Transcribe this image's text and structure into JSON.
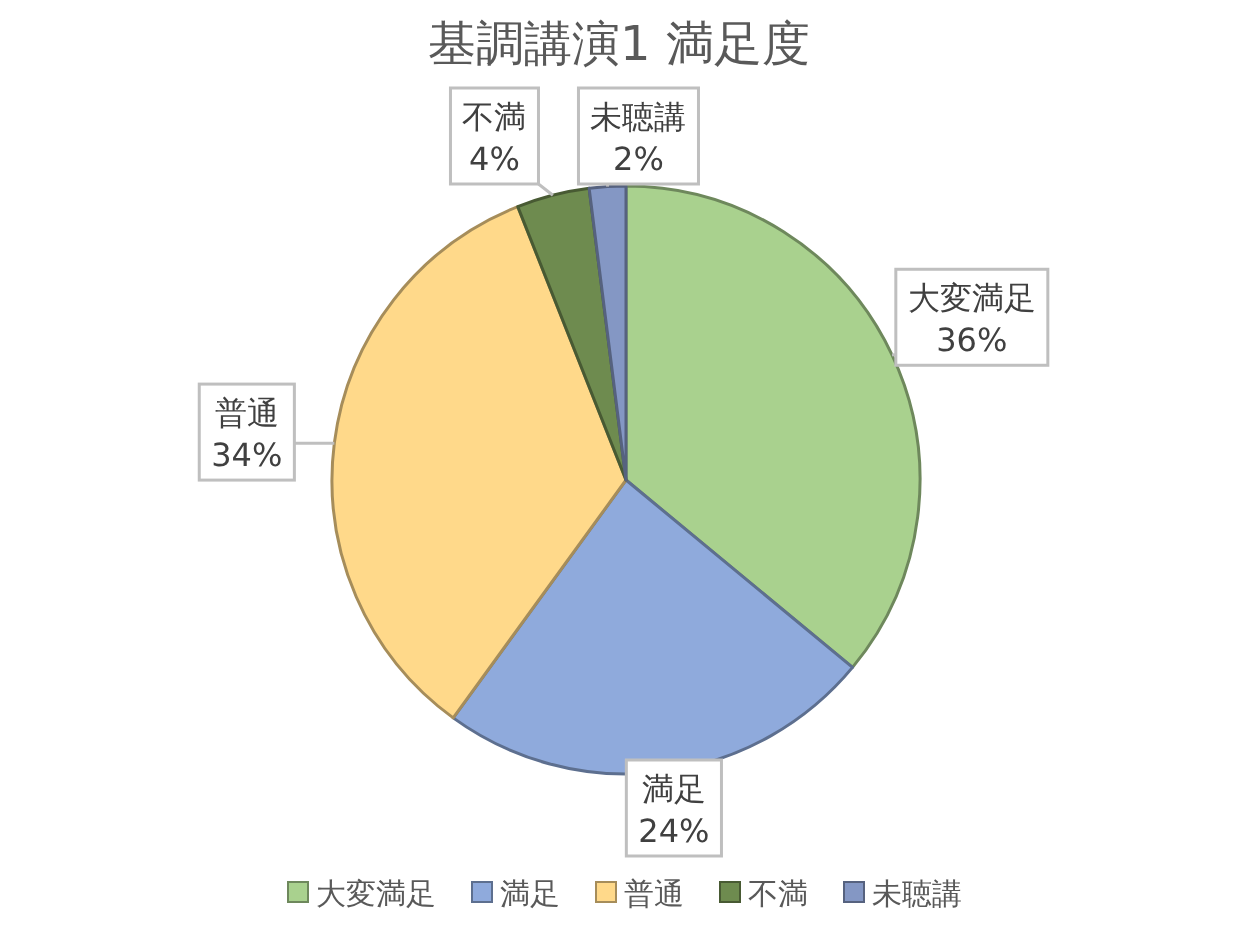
{
  "chart_data": {
    "type": "pie",
    "title": "基調講演1 満足度",
    "categories": [
      "大変満足",
      "満足",
      "普通",
      "不満",
      "未聴講"
    ],
    "values": [
      36,
      24,
      34,
      4,
      2
    ],
    "value_labels": [
      "36%",
      "24%",
      "34%",
      "4%",
      "2%"
    ],
    "colors": [
      "#a9d18e",
      "#8faadc",
      "#ffd98a",
      "#6e8b4f",
      "#8497c4"
    ],
    "legend": "bottom"
  }
}
